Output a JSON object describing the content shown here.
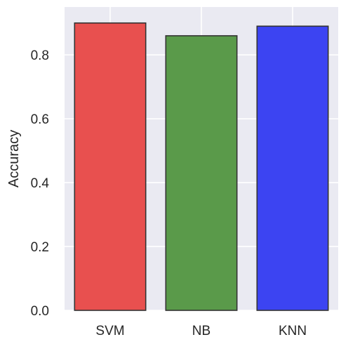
{
  "chart_data": {
    "type": "bar",
    "categories": [
      "SVM",
      "NB",
      "KNN"
    ],
    "values": [
      0.9,
      0.86,
      0.89
    ],
    "colors": [
      "#e8504f",
      "#5a9a4a",
      "#3c44f2"
    ],
    "edge_color": "#333333",
    "background_color": "#eaeaf2",
    "grid_color": "#ffffff",
    "grid": true,
    "xlabel": "",
    "ylabel": "Accuracy",
    "ylim": [
      0,
      0.95
    ],
    "yticks": [
      0.0,
      0.2,
      0.4,
      0.6,
      0.8
    ],
    "ytick_labels": [
      "0.0",
      "0.2",
      "0.4",
      "0.6",
      "0.8"
    ]
  }
}
